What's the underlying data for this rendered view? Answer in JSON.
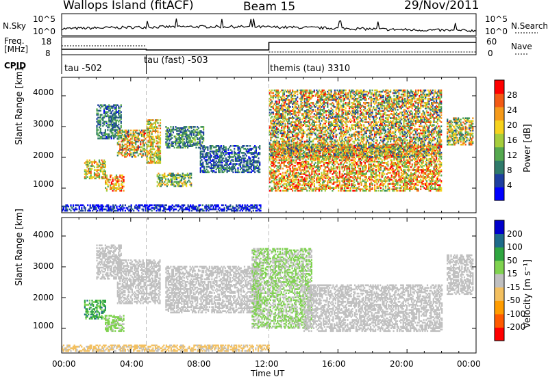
{
  "header": {
    "site": "Wallops Island (fitACF)",
    "beam": "Beam 15",
    "date": "29/Nov/2011"
  },
  "panel_labels": {
    "n_sky": "N.Sky",
    "n_search": "N.Search",
    "freq_line1": "Freq.",
    "freq_line2": "[MHz]",
    "nave": "Nave",
    "cpid": "CPID"
  },
  "noise_axis": {
    "left_top": "10^5",
    "left_bottom": "10^0",
    "right_top": "10^5",
    "right_bottom": "10^0"
  },
  "freq_axis": {
    "left_top": "18",
    "left_bottom": "8",
    "right_top": "60",
    "right_bottom": "0"
  },
  "cpid_segments": [
    {
      "label": "tau -502",
      "start": 0.0
    },
    {
      "label": "tau (fast) -503",
      "start": 4.9
    },
    {
      "label": "themis (tau) 3310",
      "start": 12.0
    }
  ],
  "colors": {
    "power_scale": [
      "#0000ff",
      "#1e3fa0",
      "#2f7a6a",
      "#55a84f",
      "#a6cd3c",
      "#f6d21d",
      "#f59a1a",
      "#f35a14",
      "#ff0000"
    ],
    "velocity_scale": [
      "#ff0000",
      "#ff5a00",
      "#ff9c00",
      "#f3c060",
      "#c0c0c0",
      "#7fd24f",
      "#2fa640",
      "#1e6b8a",
      "#0000cc"
    ]
  },
  "chart_data": [
    {
      "type": "heatmap",
      "name": "power",
      "ylabel": "Slant Range [km]",
      "xlabel": "Time UT",
      "xlim": [
        0,
        24
      ],
      "ylim": [
        200,
        4600
      ],
      "yticks": [
        "1000",
        "2000",
        "3000",
        "4000"
      ],
      "xticks": [
        "00:00",
        "04:00",
        "08:00",
        "12:00",
        "16:00",
        "20:00",
        "00:00"
      ],
      "colorbar": {
        "label": "Power [dB]",
        "ticks": [
          "4",
          "8",
          "12",
          "16",
          "20",
          "24",
          "28"
        ],
        "range": [
          0,
          32
        ]
      },
      "regions": [
        {
          "t0": 2.0,
          "t1": 3.4,
          "r0": 2600,
          "r1": 3700,
          "v0": 3,
          "v1": 14
        },
        {
          "t0": 3.2,
          "t1": 4.9,
          "r0": 2000,
          "r1": 2900,
          "v0": 5,
          "v1": 30
        },
        {
          "t0": 4.9,
          "t1": 5.7,
          "r0": 1800,
          "r1": 3200,
          "v0": 10,
          "v1": 28
        },
        {
          "t0": 1.3,
          "t1": 2.5,
          "r0": 1300,
          "r1": 1900,
          "v0": 10,
          "v1": 28
        },
        {
          "t0": 2.5,
          "t1": 3.6,
          "r0": 900,
          "r1": 1400,
          "v0": 12,
          "v1": 30
        },
        {
          "t0": 5.5,
          "t1": 7.5,
          "r0": 1050,
          "r1": 1500,
          "v0": 6,
          "v1": 24
        },
        {
          "t0": 6.0,
          "t1": 8.2,
          "r0": 2300,
          "r1": 3000,
          "v0": 4,
          "v1": 16
        },
        {
          "t0": 8.0,
          "t1": 11.5,
          "r0": 1500,
          "r1": 2400,
          "v0": 2,
          "v1": 12
        },
        {
          "t0": 12.0,
          "t1": 22.0,
          "r0": 900,
          "r1": 2400,
          "v0": 10,
          "v1": 32
        },
        {
          "t0": 12.0,
          "t1": 22.0,
          "r0": 2000,
          "r1": 4200,
          "v0": 4,
          "v1": 30
        },
        {
          "t0": 22.3,
          "t1": 23.8,
          "r0": 2400,
          "r1": 3300,
          "v0": 6,
          "v1": 28
        },
        {
          "t0": 0.0,
          "t1": 11.5,
          "r0": 250,
          "r1": 450,
          "v0": 0,
          "v1": 8
        }
      ]
    },
    {
      "type": "heatmap",
      "name": "velocity",
      "ylabel": "Slant Range [km]",
      "xlabel": "Time UT",
      "xlim": [
        0,
        24
      ],
      "ylim": [
        200,
        4600
      ],
      "yticks": [
        "1000",
        "2000",
        "3000",
        "4000"
      ],
      "xticks": [
        "00:00",
        "04:00",
        "08:00",
        "12:00",
        "16:00",
        "20:00",
        "00:00"
      ],
      "colorbar": {
        "label": "Velocity [m s⁻¹]",
        "ticks": [
          "-200",
          "-100",
          "-50",
          "-15",
          "15",
          "50",
          "100",
          "200"
        ],
        "range": [
          -250,
          250
        ]
      },
      "regions": [
        {
          "t0": 2.0,
          "t1": 3.4,
          "r0": 2600,
          "r1": 3700,
          "v0": -10,
          "v1": 10
        },
        {
          "t0": 3.2,
          "t1": 5.7,
          "r0": 1800,
          "r1": 3200,
          "v0": -10,
          "v1": 12
        },
        {
          "t0": 1.3,
          "t1": 2.5,
          "r0": 1300,
          "r1": 1900,
          "v0": 60,
          "v1": 150
        },
        {
          "t0": 2.5,
          "t1": 3.6,
          "r0": 900,
          "r1": 1400,
          "v0": 20,
          "v1": 60
        },
        {
          "t0": 6.0,
          "t1": 11.5,
          "r0": 1500,
          "r1": 3000,
          "v0": -12,
          "v1": 12
        },
        {
          "t0": 11.0,
          "t1": 14.5,
          "r0": 1000,
          "r1": 3600,
          "v0": 15,
          "v1": 45
        },
        {
          "t0": 14.0,
          "t1": 22.0,
          "r0": 900,
          "r1": 2400,
          "v0": -12,
          "v1": 12
        },
        {
          "t0": 22.3,
          "t1": 23.8,
          "r0": 2100,
          "r1": 3400,
          "v0": -14,
          "v1": 14
        },
        {
          "t0": 0.0,
          "t1": 12.0,
          "r0": 250,
          "r1": 450,
          "v0": -60,
          "v1": -15
        }
      ]
    }
  ]
}
